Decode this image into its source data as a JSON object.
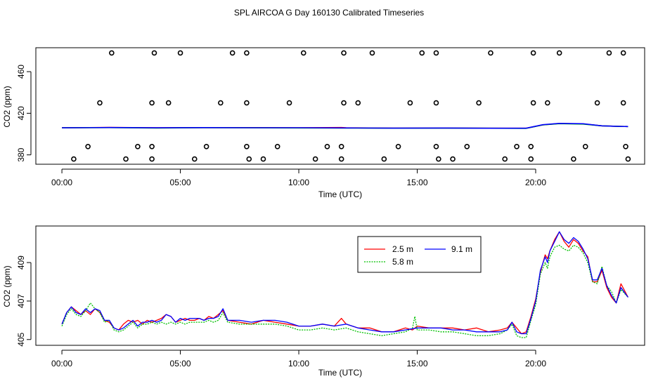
{
  "figure_title": "SPL AIRCOA G  Day 160130  Calibrated Timeseries",
  "chart_data": [
    {
      "type": "scatter+line",
      "title": "",
      "xlabel": "Time (UTC)",
      "ylabel": "CO2 (ppm)",
      "xlim": [
        -1.1,
        24.6
      ],
      "ylim": [
        371,
        483
      ],
      "xticks": [
        0,
        5,
        10,
        15,
        20
      ],
      "xtick_labels": [
        "00:00",
        "05:00",
        "10:00",
        "15:00",
        "20:00"
      ],
      "yticks": [
        380,
        420,
        460
      ],
      "ytick_labels": [
        "380",
        "420",
        "460"
      ],
      "reference_points": {
        "marker": "open-circle",
        "levels": [
          {
            "y": 478,
            "x": [
              2.1,
              3.9,
              5.0,
              7.2,
              7.8,
              10.2,
              11.9,
              13.1,
              15.2,
              15.8,
              18.1,
              19.9,
              21.0,
              23.1,
              23.7
            ]
          },
          {
            "y": 430,
            "x": [
              1.6,
              3.8,
              4.5,
              6.7,
              7.8,
              9.6,
              11.9,
              12.5,
              14.7,
              15.8,
              17.6,
              19.9,
              20.5,
              22.6,
              23.7
            ]
          },
          {
            "y": 388,
            "x": [
              1.1,
              3.2,
              3.8,
              6.1,
              7.8,
              9.1,
              11.2,
              11.8,
              14.2,
              15.8,
              17.1,
              19.2,
              19.8,
              22.1,
              23.8
            ]
          },
          {
            "y": 376,
            "x": [
              0.5,
              2.7,
              3.8,
              5.6,
              7.9,
              8.5,
              10.7,
              11.8,
              13.6,
              15.9,
              16.5,
              18.7,
              19.8,
              21.6,
              23.9
            ]
          }
        ]
      },
      "series": [
        {
          "name": "2.5 m",
          "color": "#ff0000",
          "x": [
            0,
            2,
            4,
            6,
            8,
            10,
            11.8,
            12,
            14,
            16,
            18,
            19.6,
            20.3,
            21,
            22,
            22.8,
            23.5,
            23.9
          ],
          "values": [
            406,
            406.4,
            406,
            406.2,
            406.2,
            406.1,
            406.3,
            406,
            405.7,
            405.8,
            405.6,
            405.6,
            408.8,
            410.2,
            409.8,
            407.9,
            407.4,
            407.2
          ]
        },
        {
          "name": "5.8 m",
          "color": "#00c000",
          "x": [
            0,
            2,
            4,
            6,
            8,
            10,
            12,
            14,
            16,
            18,
            19.6,
            20.3,
            21,
            22,
            22.8,
            23.5,
            23.9
          ],
          "values": [
            406,
            406.2,
            405.8,
            406.1,
            406,
            405.9,
            405.8,
            405.6,
            405.7,
            405.6,
            405.5,
            408.8,
            410,
            409.6,
            407.9,
            407.4,
            407.2
          ]
        },
        {
          "name": "9.1 m",
          "color": "#0000ff",
          "x": [
            0,
            2,
            4,
            6,
            8,
            10,
            12,
            14,
            16,
            18,
            19.6,
            20.3,
            21,
            22,
            22.8,
            23.5,
            23.9
          ],
          "values": [
            406,
            406.3,
            406,
            406.2,
            406.1,
            406.1,
            405.9,
            405.7,
            405.8,
            405.6,
            405.6,
            409,
            410.3,
            409.9,
            407.9,
            407.4,
            407.2
          ]
        }
      ]
    },
    {
      "type": "line",
      "title": "",
      "xlabel": "Time (UTC)",
      "ylabel": "CO2 (ppm)",
      "xlim": [
        -1.1,
        24.6
      ],
      "ylim": [
        404.7,
        410.9
      ],
      "xticks": [
        0,
        5,
        10,
        15,
        20
      ],
      "xtick_labels": [
        "00:00",
        "05:00",
        "10:00",
        "15:00",
        "20:00"
      ],
      "yticks": [
        405,
        407,
        409
      ],
      "ytick_labels": [
        "405",
        "407",
        "409"
      ],
      "legend_position": "top-right",
      "series": [
        {
          "name": "2.5 m",
          "color": "#ff0000",
          "x": [
            0,
            0.2,
            0.4,
            0.6,
            0.8,
            1.0,
            1.2,
            1.4,
            1.6,
            1.8,
            2.0,
            2.2,
            2.4,
            2.6,
            2.8,
            3.0,
            3.2,
            3.4,
            3.6,
            3.8,
            4.0,
            4.2,
            4.4,
            4.6,
            4.8,
            5.0,
            5.2,
            5.4,
            5.6,
            5.8,
            6.0,
            6.2,
            6.4,
            6.6,
            6.8,
            7.0,
            7.5,
            8.0,
            8.5,
            9.0,
            9.5,
            10.0,
            10.5,
            11.0,
            11.5,
            11.8,
            12.0,
            12.5,
            13.0,
            13.5,
            14.0,
            14.5,
            14.8,
            15.0,
            15.5,
            16.0,
            16.5,
            17.0,
            17.5,
            18.0,
            18.5,
            18.8,
            19.0,
            19.2,
            19.4,
            19.6,
            19.8,
            20.0,
            20.2,
            20.4,
            20.5,
            20.6,
            20.8,
            21.0,
            21.2,
            21.4,
            21.6,
            21.8,
            22.0,
            22.2,
            22.4,
            22.6,
            22.8,
            23.0,
            23.2,
            23.4,
            23.6,
            23.9
          ],
          "values": [
            405.8,
            406.4,
            406.7,
            406.5,
            406.3,
            406.5,
            406.3,
            406.6,
            406.4,
            406,
            405.9,
            405.6,
            405.5,
            405.8,
            406,
            405.9,
            406.0,
            405.8,
            406,
            405.9,
            406,
            406.1,
            406.3,
            406.2,
            405.9,
            406,
            406.1,
            406.0,
            406,
            406.1,
            406.0,
            406.2,
            406.1,
            406.3,
            406.5,
            406,
            405.9,
            405.8,
            406,
            405.9,
            405.8,
            405.7,
            405.7,
            405.8,
            405.7,
            406.1,
            405.8,
            405.6,
            405.6,
            405.4,
            405.4,
            405.6,
            405.5,
            405.7,
            405.6,
            405.6,
            405.6,
            405.5,
            405.6,
            405.4,
            405.5,
            405.6,
            405.9,
            405.6,
            405.3,
            405.4,
            406.2,
            407.1,
            408.5,
            409.4,
            409.2,
            409.6,
            410.2,
            410.6,
            410.1,
            409.8,
            410.2,
            410.0,
            409.6,
            409.3,
            408.0,
            408.0,
            408.6,
            407.7,
            407.2,
            406.9,
            407.9,
            407.2
          ]
        },
        {
          "name": "5.8 m",
          "color": "#00c000",
          "x": [
            0,
            0.2,
            0.4,
            0.6,
            0.8,
            1.0,
            1.2,
            1.4,
            1.6,
            1.8,
            2.0,
            2.2,
            2.4,
            2.6,
            2.8,
            3.0,
            3.2,
            3.4,
            3.6,
            3.8,
            4.0,
            4.2,
            4.4,
            4.6,
            4.8,
            5.0,
            5.2,
            5.4,
            5.6,
            5.8,
            6.0,
            6.2,
            6.4,
            6.6,
            6.8,
            7.0,
            7.5,
            8.0,
            8.5,
            9.0,
            9.5,
            10.0,
            10.5,
            11.0,
            11.5,
            12.0,
            12.5,
            13.0,
            13.5,
            14.0,
            14.5,
            14.8,
            14.9,
            15.0,
            15.5,
            16.0,
            16.5,
            17.0,
            17.5,
            18.0,
            18.5,
            18.8,
            19.0,
            19.2,
            19.4,
            19.6,
            19.8,
            20.0,
            20.2,
            20.4,
            20.5,
            20.6,
            20.8,
            21.0,
            21.2,
            21.4,
            21.6,
            21.8,
            22.0,
            22.2,
            22.4,
            22.6,
            22.8,
            23.0,
            23.2,
            23.4,
            23.6,
            23.9
          ],
          "values": [
            405.7,
            406.3,
            406.6,
            406.3,
            406.2,
            406.5,
            406.9,
            406.6,
            406.4,
            405.9,
            406.0,
            405.5,
            405.4,
            405.5,
            405.7,
            405.9,
            405.6,
            405.8,
            405.8,
            405.9,
            405.8,
            405.9,
            405.8,
            405.9,
            405.8,
            405.9,
            405.8,
            405.9,
            405.9,
            405.9,
            405.9,
            406.0,
            405.9,
            406.0,
            406.4,
            405.9,
            405.8,
            405.8,
            405.8,
            405.8,
            405.7,
            405.5,
            405.5,
            405.6,
            405.5,
            405.6,
            405.4,
            405.3,
            405.2,
            405.3,
            405.4,
            405.6,
            406.2,
            405.5,
            405.5,
            405.4,
            405.4,
            405.3,
            405.2,
            405.2,
            405.3,
            405.5,
            405.8,
            405.2,
            405.1,
            405.1,
            406.0,
            406.8,
            408.4,
            409.0,
            408.7,
            409.3,
            409.8,
            409.9,
            409.7,
            409.6,
            409.9,
            409.8,
            409.5,
            409.0,
            408.0,
            407.9,
            408.8,
            407.8,
            407.5,
            406.9,
            407.6,
            407.2
          ]
        },
        {
          "name": "9.1 m",
          "color": "#0000ff",
          "x": [
            0,
            0.2,
            0.4,
            0.6,
            0.8,
            1.0,
            1.2,
            1.4,
            1.6,
            1.8,
            2.0,
            2.2,
            2.4,
            2.6,
            2.8,
            3.0,
            3.2,
            3.4,
            3.6,
            3.8,
            4.0,
            4.2,
            4.4,
            4.6,
            4.8,
            5.0,
            5.2,
            5.4,
            5.6,
            5.8,
            6.0,
            6.2,
            6.4,
            6.6,
            6.8,
            7.0,
            7.5,
            8.0,
            8.5,
            9.0,
            9.5,
            10.0,
            10.5,
            11.0,
            11.5,
            12.0,
            12.5,
            13.0,
            13.5,
            14.0,
            14.5,
            15.0,
            15.5,
            16.0,
            16.5,
            17.0,
            17.5,
            18.0,
            18.5,
            18.8,
            19.0,
            19.2,
            19.4,
            19.6,
            19.8,
            20.0,
            20.2,
            20.4,
            20.5,
            20.6,
            20.8,
            21.0,
            21.2,
            21.4,
            21.6,
            21.8,
            22.0,
            22.2,
            22.4,
            22.6,
            22.8,
            23.0,
            23.2,
            23.4,
            23.6,
            23.9
          ],
          "values": [
            405.8,
            406.4,
            406.7,
            406.4,
            406.3,
            406.6,
            406.4,
            406.6,
            406.5,
            406.0,
            406.0,
            405.6,
            405.5,
            405.6,
            405.8,
            406.0,
            405.7,
            405.9,
            405.9,
            406.0,
            405.9,
            406.0,
            406.3,
            406.2,
            405.9,
            406.1,
            406.0,
            406.1,
            406.1,
            406.1,
            406.0,
            406.1,
            406.1,
            406.2,
            406.6,
            406.0,
            406.0,
            405.9,
            406.0,
            406.0,
            405.9,
            405.7,
            405.7,
            405.8,
            405.7,
            405.8,
            405.6,
            405.5,
            405.4,
            405.4,
            405.5,
            405.6,
            405.6,
            405.6,
            405.5,
            405.5,
            405.4,
            405.4,
            405.4,
            405.5,
            405.9,
            405.4,
            405.3,
            405.3,
            406.1,
            407.0,
            408.6,
            409.3,
            409.0,
            409.6,
            410.1,
            410.6,
            410.2,
            410.0,
            410.3,
            410.1,
            409.7,
            409.2,
            408.1,
            408.1,
            408.7,
            407.8,
            407.3,
            406.9,
            407.7,
            407.2
          ]
        }
      ]
    }
  ]
}
